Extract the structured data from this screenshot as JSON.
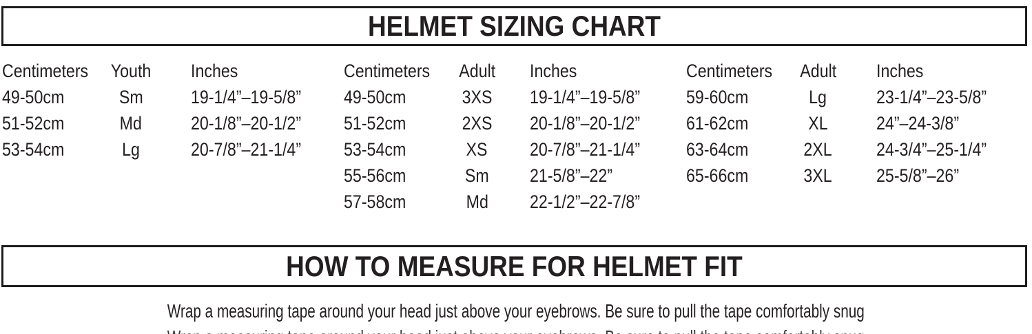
{
  "titles": {
    "sizing_chart": "HELMET SIZING CHART",
    "how_to_measure": "HOW TO MEASURE FOR HELMET FIT"
  },
  "sizing_chart": {
    "groups": [
      {
        "header_cm": "Centimeters",
        "header_size": "Youth",
        "header_inches": "Inches",
        "rows": [
          {
            "cm": "49-50cm",
            "size": "Sm",
            "inches": "19-1/4”–19-5/8”"
          },
          {
            "cm": "51-52cm",
            "size": "Md",
            "inches": "20-1/8”–20-1/2”"
          },
          {
            "cm": "53-54cm",
            "size": "Lg",
            "inches": "20-7/8”–21-1/4”"
          }
        ]
      },
      {
        "header_cm": "Centimeters",
        "header_size": "Adult",
        "header_inches": "Inches",
        "rows": [
          {
            "cm": "49-50cm",
            "size": "3XS",
            "inches": "19-1/4”–19-5/8”"
          },
          {
            "cm": "51-52cm",
            "size": "2XS",
            "inches": "20-1/8”–20-1/2”"
          },
          {
            "cm": "53-54cm",
            "size": "XS",
            "inches": "20-7/8”–21-1/4”"
          },
          {
            "cm": "55-56cm",
            "size": "Sm",
            "inches": "21-5/8”–22”"
          },
          {
            "cm": "57-58cm",
            "size": "Md",
            "inches": "22-1/2”–22-7/8”"
          }
        ]
      },
      {
        "header_cm": "Centimeters",
        "header_size": "Adult",
        "header_inches": "Inches",
        "rows": [
          {
            "cm": "59-60cm",
            "size": "Lg",
            "inches": "23-1/4”–23-5/8”"
          },
          {
            "cm": "61-62cm",
            "size": "XL",
            "inches": "24”–24-3/8”"
          },
          {
            "cm": "63-64cm",
            "size": "2XL",
            "inches": "24-3/4”–25-1/4”"
          },
          {
            "cm": "65-66cm",
            "size": "3XL",
            "inches": "25-5/8”–26”"
          }
        ]
      }
    ]
  },
  "instructions": {
    "line": "Wrap a measuring tape around your head just above your eyebrows. Be sure to pull the tape comfortably snug",
    "clipped_partial_line": "Wrap a measuring tape around your head just above your eyebrows. Be sure to pull the tape comfortably snug"
  },
  "colors": {
    "text": "#231f20",
    "border": "#1d1d1b",
    "background": "#ffffff"
  }
}
